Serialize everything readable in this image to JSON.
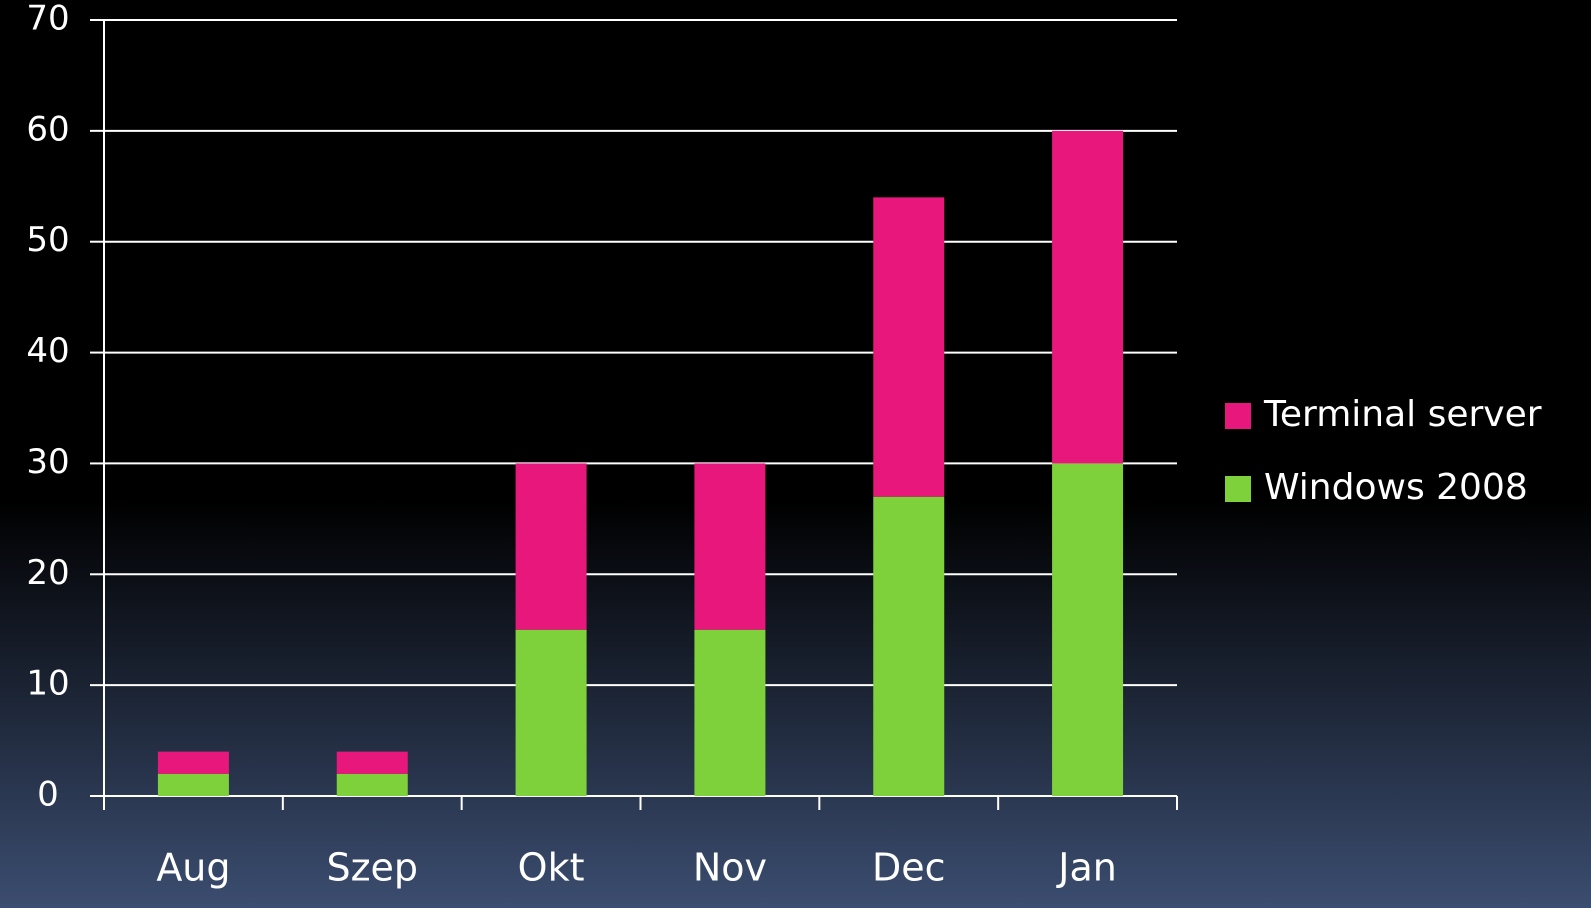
{
  "chart_data": {
    "type": "stacked-bar",
    "categories": [
      "Aug",
      "Szep",
      "Okt",
      "Nov",
      "Dec",
      "Jan"
    ],
    "series": [
      {
        "name": "Windows 2008",
        "color": "#7fd13b",
        "values": [
          2,
          2,
          15,
          15,
          27,
          30
        ]
      },
      {
        "name": "Terminal server",
        "color": "#e8177b",
        "values": [
          2,
          2,
          15,
          15,
          27,
          30
        ]
      }
    ],
    "ylim": [
      0,
      70
    ],
    "yticks": [
      0,
      10,
      20,
      30,
      40,
      50,
      60,
      70
    ],
    "grid": true,
    "legend": "right"
  }
}
